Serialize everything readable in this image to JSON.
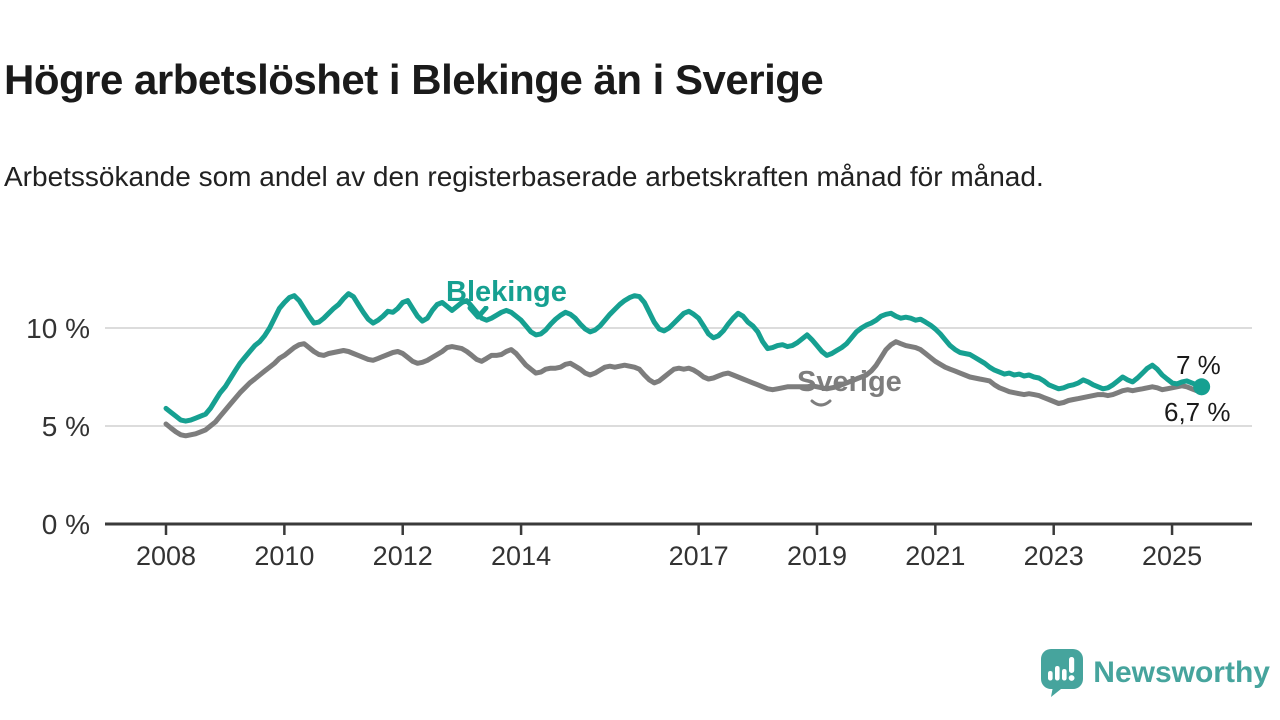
{
  "page": {
    "title": "Högre arbetslöshet i Blekinge än i Sverige",
    "subtitle": "Arbetssökande som andel av den registerbaserade arbetskraften månad för månad."
  },
  "branding": {
    "logo_text": "Newsworthy",
    "logo_icon": "speech-bubble-bar-chart-icon",
    "logo_color": "#46a49d"
  },
  "colors": {
    "blekinge": "#16a091",
    "sverige": "#7d7d7d",
    "grid": "#dcdcdc",
    "axis": "#3a3a3a",
    "tick_text": "#333333"
  },
  "chart_data": {
    "type": "line",
    "unit": "percent",
    "x_start": "2008-01",
    "x_end": "2025-07",
    "x_frequency": "monthly",
    "x_tick_years": [
      2008,
      2010,
      2012,
      2014,
      2017,
      2019,
      2021,
      2023,
      2025
    ],
    "ylim": [
      0,
      12.3
    ],
    "y_ticks": [
      {
        "value": 0,
        "label": "0 %"
      },
      {
        "value": 5,
        "label": "5 %"
      },
      {
        "value": 10,
        "label": "10 %"
      }
    ],
    "grid": "horizontal-only",
    "legend_position": "inline-labels",
    "series": [
      {
        "name": "Blekinge",
        "color": "#16a091",
        "end_label": "7 %",
        "end_marker": "dot",
        "values": [
          5.9,
          5.7,
          5.5,
          5.3,
          5.25,
          5.3,
          5.4,
          5.5,
          5.6,
          5.9,
          6.3,
          6.7,
          7.0,
          7.4,
          7.8,
          8.2,
          8.5,
          8.8,
          9.1,
          9.3,
          9.6,
          10.0,
          10.5,
          11.0,
          11.3,
          11.55,
          11.65,
          11.4,
          11.0,
          10.6,
          10.25,
          10.3,
          10.5,
          10.75,
          11.0,
          11.2,
          11.5,
          11.75,
          11.6,
          11.2,
          10.8,
          10.45,
          10.25,
          10.4,
          10.6,
          10.85,
          10.8,
          11.0,
          11.3,
          11.4,
          11.0,
          10.6,
          10.35,
          10.5,
          10.9,
          11.2,
          11.3,
          11.1,
          10.9,
          11.1,
          11.3,
          11.4,
          11.1,
          10.8,
          10.5,
          10.4,
          10.5,
          10.65,
          10.8,
          10.9,
          10.8,
          10.6,
          10.4,
          10.1,
          9.8,
          9.65,
          9.7,
          9.9,
          10.2,
          10.45,
          10.65,
          10.8,
          10.7,
          10.5,
          10.2,
          9.95,
          9.8,
          9.9,
          10.1,
          10.4,
          10.7,
          10.95,
          11.2,
          11.4,
          11.55,
          11.65,
          11.6,
          11.3,
          10.8,
          10.3,
          9.95,
          9.85,
          10.0,
          10.25,
          10.5,
          10.75,
          10.85,
          10.7,
          10.5,
          10.1,
          9.7,
          9.5,
          9.6,
          9.85,
          10.2,
          10.5,
          10.75,
          10.6,
          10.3,
          10.1,
          9.8,
          9.3,
          8.95,
          9.0,
          9.1,
          9.15,
          9.05,
          9.1,
          9.25,
          9.45,
          9.65,
          9.4,
          9.1,
          8.8,
          8.6,
          8.7,
          8.85,
          9.0,
          9.2,
          9.5,
          9.8,
          10.0,
          10.15,
          10.25,
          10.4,
          10.6,
          10.7,
          10.75,
          10.6,
          10.5,
          10.55,
          10.5,
          10.4,
          10.45,
          10.3,
          10.15,
          9.95,
          9.7,
          9.4,
          9.1,
          8.9,
          8.75,
          8.7,
          8.65,
          8.5,
          8.35,
          8.2,
          8.0,
          7.85,
          7.75,
          7.65,
          7.7,
          7.6,
          7.65,
          7.55,
          7.6,
          7.5,
          7.45,
          7.3,
          7.1,
          7.0,
          6.9,
          6.95,
          7.05,
          7.1,
          7.2,
          7.35,
          7.25,
          7.1,
          7.0,
          6.9,
          6.95,
          7.1,
          7.3,
          7.5,
          7.35,
          7.25,
          7.45,
          7.7,
          7.95,
          8.1,
          7.9,
          7.6,
          7.4,
          7.2,
          7.15,
          7.25,
          7.3,
          7.2,
          7.1,
          7.0
        ]
      },
      {
        "name": "Sverige",
        "color": "#7d7d7d",
        "end_label": "6,7 %",
        "end_marker": "none",
        "values": [
          5.1,
          4.9,
          4.7,
          4.55,
          4.5,
          4.55,
          4.6,
          4.7,
          4.8,
          5.0,
          5.2,
          5.5,
          5.8,
          6.1,
          6.4,
          6.7,
          6.95,
          7.2,
          7.4,
          7.6,
          7.8,
          8.0,
          8.2,
          8.45,
          8.6,
          8.8,
          9.0,
          9.15,
          9.2,
          9.0,
          8.8,
          8.65,
          8.6,
          8.7,
          8.75,
          8.8,
          8.85,
          8.8,
          8.7,
          8.6,
          8.5,
          8.4,
          8.35,
          8.45,
          8.55,
          8.65,
          8.75,
          8.8,
          8.7,
          8.5,
          8.3,
          8.2,
          8.25,
          8.35,
          8.5,
          8.65,
          8.8,
          9.0,
          9.05,
          9.0,
          8.95,
          8.8,
          8.6,
          8.4,
          8.3,
          8.45,
          8.6,
          8.6,
          8.65,
          8.8,
          8.9,
          8.7,
          8.4,
          8.1,
          7.9,
          7.7,
          7.75,
          7.9,
          7.95,
          7.95,
          8.0,
          8.15,
          8.2,
          8.05,
          7.9,
          7.7,
          7.6,
          7.7,
          7.85,
          8.0,
          8.05,
          8.0,
          8.05,
          8.1,
          8.05,
          8.0,
          7.9,
          7.6,
          7.35,
          7.2,
          7.3,
          7.5,
          7.7,
          7.9,
          7.95,
          7.9,
          7.95,
          7.85,
          7.7,
          7.5,
          7.4,
          7.45,
          7.55,
          7.65,
          7.7,
          7.6,
          7.5,
          7.4,
          7.3,
          7.2,
          7.1,
          7.0,
          6.9,
          6.85,
          6.9,
          6.95,
          7.0,
          7.0,
          7.0,
          7.0,
          7.0,
          7.05,
          7.0,
          6.95,
          6.9,
          6.95,
          7.0,
          7.1,
          7.2,
          7.3,
          7.4,
          7.5,
          7.6,
          7.8,
          8.1,
          8.5,
          8.9,
          9.15,
          9.3,
          9.2,
          9.1,
          9.05,
          9.0,
          8.9,
          8.7,
          8.5,
          8.3,
          8.15,
          8.0,
          7.9,
          7.8,
          7.7,
          7.6,
          7.5,
          7.45,
          7.4,
          7.35,
          7.3,
          7.1,
          6.95,
          6.85,
          6.75,
          6.7,
          6.65,
          6.6,
          6.65,
          6.6,
          6.55,
          6.45,
          6.35,
          6.25,
          6.15,
          6.2,
          6.3,
          6.35,
          6.4,
          6.45,
          6.5,
          6.55,
          6.6,
          6.6,
          6.55,
          6.6,
          6.7,
          6.8,
          6.85,
          6.8,
          6.85,
          6.9,
          6.95,
          7.0,
          6.95,
          6.85,
          6.9,
          6.95,
          7.0,
          7.05,
          7.0,
          6.9,
          6.8,
          6.7
        ]
      }
    ]
  }
}
